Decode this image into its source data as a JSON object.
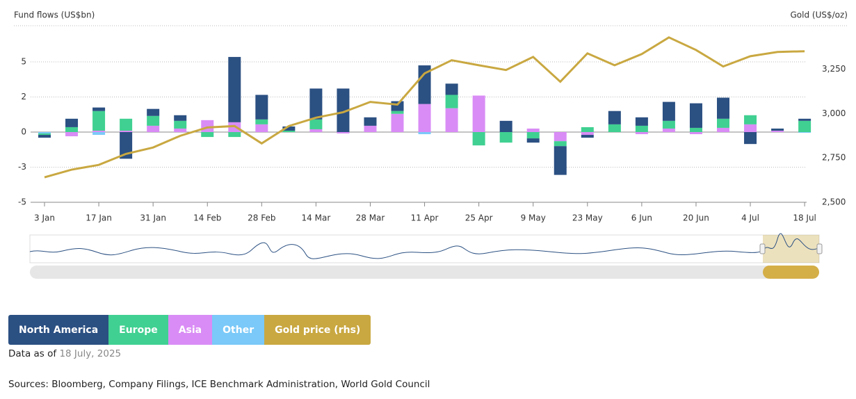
{
  "chart_data": {
    "type": "bar",
    "y_label": "Fund flows (US$bn)",
    "y2_label": "Gold (US$/oz)",
    "categories": [
      "3 Jan",
      null,
      "17 Jan",
      null,
      "31 Jan",
      null,
      "14 Feb",
      null,
      "28 Feb",
      null,
      "14 Mar",
      null,
      "28 Mar",
      null,
      "11 Apr",
      null,
      "25 Apr",
      null,
      "9 May",
      null,
      "23 May",
      null,
      "6 Jun",
      null,
      "20 Jun",
      null,
      "4 Jul",
      null,
      "18 Jul"
    ],
    "series": [
      {
        "name": "North America",
        "color": "#2b5082",
        "values": [
          -0.2,
          0.6,
          0.25,
          -1.9,
          0.5,
          0.4,
          0,
          4.65,
          1.75,
          0.3,
          2.2,
          3.1,
          0.6,
          0.7,
          2.75,
          0.8,
          0,
          0.8,
          -0.3,
          -2.05,
          -0.2,
          0.95,
          0.6,
          1.35,
          1.75,
          1.5,
          -0.85,
          0.15,
          0.15
        ]
      },
      {
        "name": "Europe",
        "color": "#40d091",
        "values": [
          -0.1,
          0.35,
          1.4,
          0.85,
          0.7,
          0.55,
          -0.35,
          -0.35,
          0.35,
          0.1,
          0.7,
          0,
          0,
          0.2,
          0,
          0.95,
          -0.95,
          -0.75,
          -0.45,
          -0.35,
          0.35,
          0.55,
          0.45,
          0.55,
          0.3,
          0.65,
          0.65,
          0,
          0.8
        ]
      },
      {
        "name": "Asia",
        "color": "#d98cf5",
        "values": [
          0,
          -0.3,
          0.1,
          0.1,
          0.45,
          0.25,
          0.85,
          0.7,
          0.55,
          0,
          0.2,
          -0.1,
          0.45,
          1.3,
          2.0,
          1.7,
          2.6,
          0,
          0.25,
          -0.65,
          -0.2,
          0,
          -0.15,
          0.25,
          -0.15,
          0.3,
          0.55,
          0.1,
          0
        ]
      },
      {
        "name": "Other",
        "color": "#7ac9f8",
        "values": [
          -0.1,
          0,
          -0.2,
          0,
          0,
          0,
          0,
          0,
          0,
          0,
          0,
          0,
          0,
          0,
          -0.15,
          0,
          0,
          0,
          0,
          0,
          0,
          0,
          0,
          0,
          0,
          0,
          0,
          0,
          -0.05
        ]
      },
      {
        "name": "Gold price (rhs)",
        "color": "#c9a841",
        "axis": "y2",
        "type": "line",
        "values": [
          2641,
          2684,
          2711,
          2773,
          2809,
          2875,
          2922,
          2930,
          2832,
          2930,
          2977,
          3008,
          3066,
          3051,
          3227,
          3301,
          3273,
          3246,
          3320,
          3180,
          3340,
          3273,
          3336,
          3430,
          3359,
          3266,
          3324,
          3348,
          3352
        ]
      }
    ],
    "ylim": [
      -5,
      7.5
    ],
    "yticks": [
      -5,
      {
        "value": -2.5,
        "label": "-3"
      },
      0,
      {
        "value": 2.5,
        "label": "2"
      },
      5
    ],
    "y2lim": [
      2500,
      3490
    ],
    "y2ticks": [
      {
        "value": 2500,
        "label": "2,500"
      },
      {
        "value": 2750,
        "label": "2,750"
      },
      {
        "value": 3000,
        "label": "3,000"
      },
      {
        "value": 3250,
        "label": "3,250"
      }
    ],
    "grid": true,
    "note_prefix": "Data as of",
    "note_date": "18 July, 2025",
    "source": "Sources: Bloomberg, Company Filings, ICE Benchmark Administration, World Gold Council"
  }
}
